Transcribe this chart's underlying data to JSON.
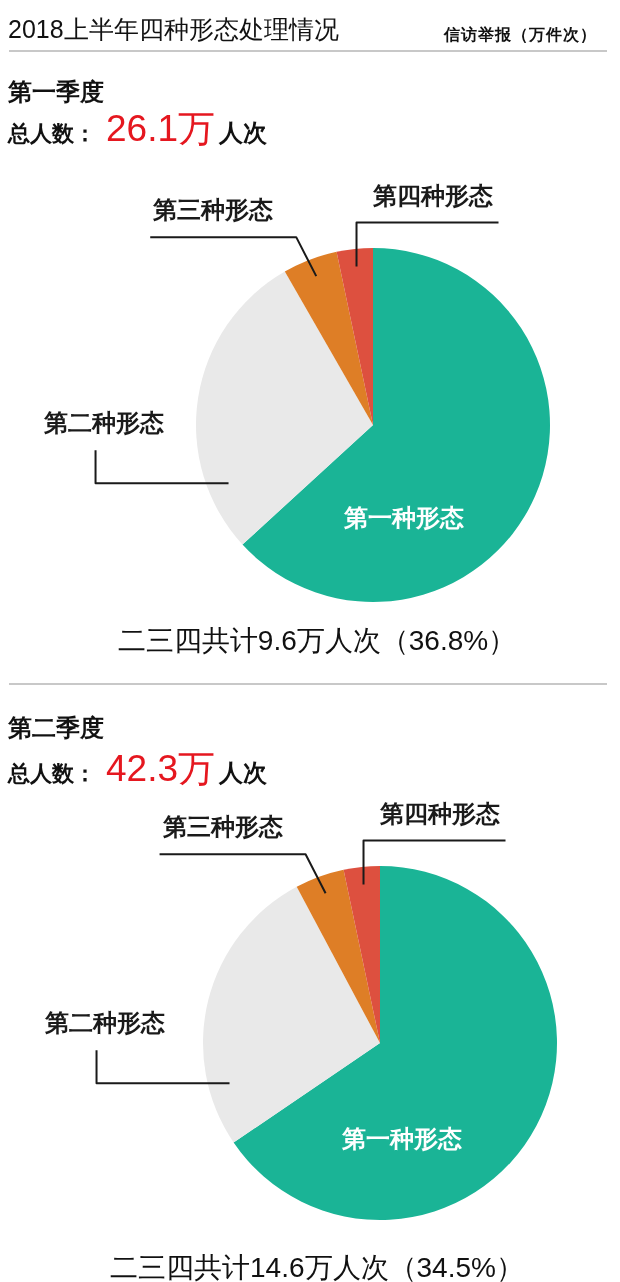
{
  "chart_data": [
    {
      "type": "pie",
      "title": "2018上半年四种形态处理情况",
      "subtitle": "第一季度",
      "categories": [
        "第一种形态",
        "第二种形态",
        "第三种形态",
        "第四种形态"
      ],
      "values": [
        63.2,
        28.5,
        5.0,
        3.3
      ],
      "colors": [
        "#1ab496",
        "#e9e9e9",
        "#de7e26",
        "#dd503f"
      ],
      "annotations": [
        "信访举报（万件次）",
        "总人数：26.1万人次",
        "二三四共计9.6万人次（36.8%）"
      ]
    },
    {
      "type": "pie",
      "title": "第二季度",
      "categories": [
        "第一种形态",
        "第二种形态",
        "第三种形态",
        "第四种形态"
      ],
      "values": [
        65.5,
        26.7,
        4.5,
        3.3
      ],
      "colors": [
        "#1ab496",
        "#e9e9e9",
        "#de7e26",
        "#dd503f"
      ],
      "annotations": [
        "总人数：42.3万人次",
        "二三四共计14.6万人次（34.5%）"
      ]
    }
  ]
}
